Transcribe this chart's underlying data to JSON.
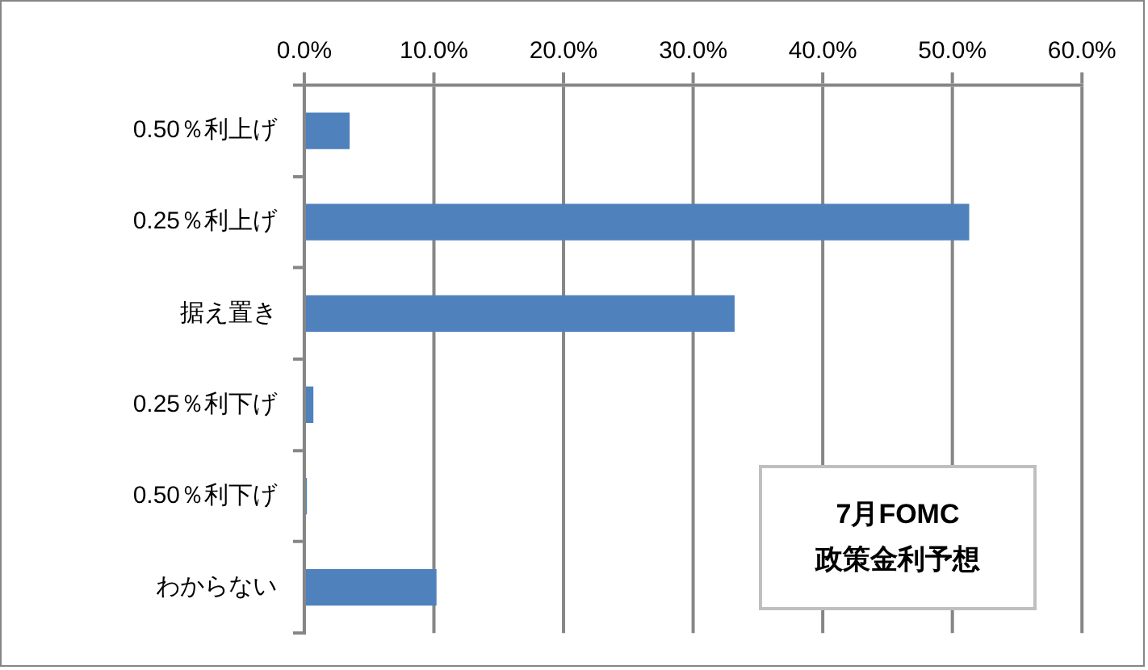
{
  "chart_data": {
    "type": "bar",
    "orientation": "horizontal",
    "title": "7月FOMC\n政策金利予想",
    "categories": [
      "0.50％利上げ",
      "0.25％利上げ",
      "据え置き",
      "0.25％利下げ",
      "0.50％利下げ",
      "わからない"
    ],
    "values": [
      3.5,
      51.3,
      33.2,
      0.7,
      0.2,
      10.2
    ],
    "color": "#4f81bd",
    "xlim": [
      0,
      60
    ],
    "xticks": [
      {
        "value": 0,
        "label": "0.0%"
      },
      {
        "value": 10,
        "label": "10.0%"
      },
      {
        "value": 20,
        "label": "20.0%"
      },
      {
        "value": 30,
        "label": "30.0%"
      },
      {
        "value": 40,
        "label": "40.0%"
      },
      {
        "value": 50,
        "label": "50.0%"
      },
      {
        "value": 60,
        "label": "60.0%"
      }
    ],
    "grid": "x",
    "legend": false
  }
}
